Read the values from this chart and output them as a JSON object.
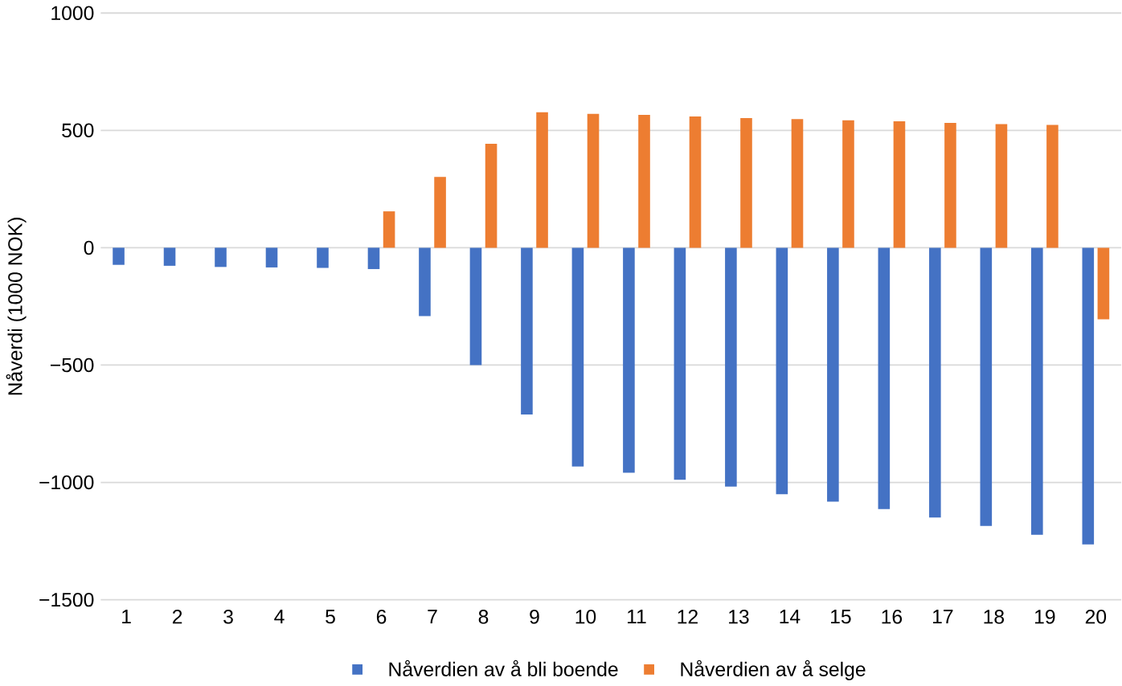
{
  "chart_data": {
    "type": "bar",
    "ylabel": "Nåverdi (1000 NOK)",
    "categories": [
      "1",
      "2",
      "3",
      "4",
      "5",
      "6",
      "7",
      "8",
      "9",
      "10",
      "11",
      "12",
      "13",
      "14",
      "15",
      "16",
      "17",
      "18",
      "19",
      "20"
    ],
    "series": [
      {
        "name": "Nåverdien av å bli boende",
        "color": "#4472c4",
        "values": [
          -73,
          -77,
          -82,
          -84,
          -86,
          -91,
          -291,
          -500,
          -711,
          -932,
          -959,
          -989,
          -1018,
          -1050,
          -1082,
          -1114,
          -1150,
          -1186,
          -1223,
          -1264
        ]
      },
      {
        "name": "Nåverdien av å selge",
        "color": "#ed7d31",
        "values": [
          0,
          0,
          0,
          0,
          0,
          155,
          302,
          443,
          577,
          570,
          566,
          559,
          552,
          548,
          543,
          539,
          532,
          527,
          523,
          -305
        ]
      }
    ],
    "ylim": [
      -1500,
      1000
    ],
    "yticks": [
      {
        "value": -1500,
        "label": "−1500"
      },
      {
        "value": -1000,
        "label": "−1000"
      },
      {
        "value": -500,
        "label": "−500"
      },
      0,
      500,
      1000
    ],
    "grid": "y",
    "legend": "bottom"
  }
}
